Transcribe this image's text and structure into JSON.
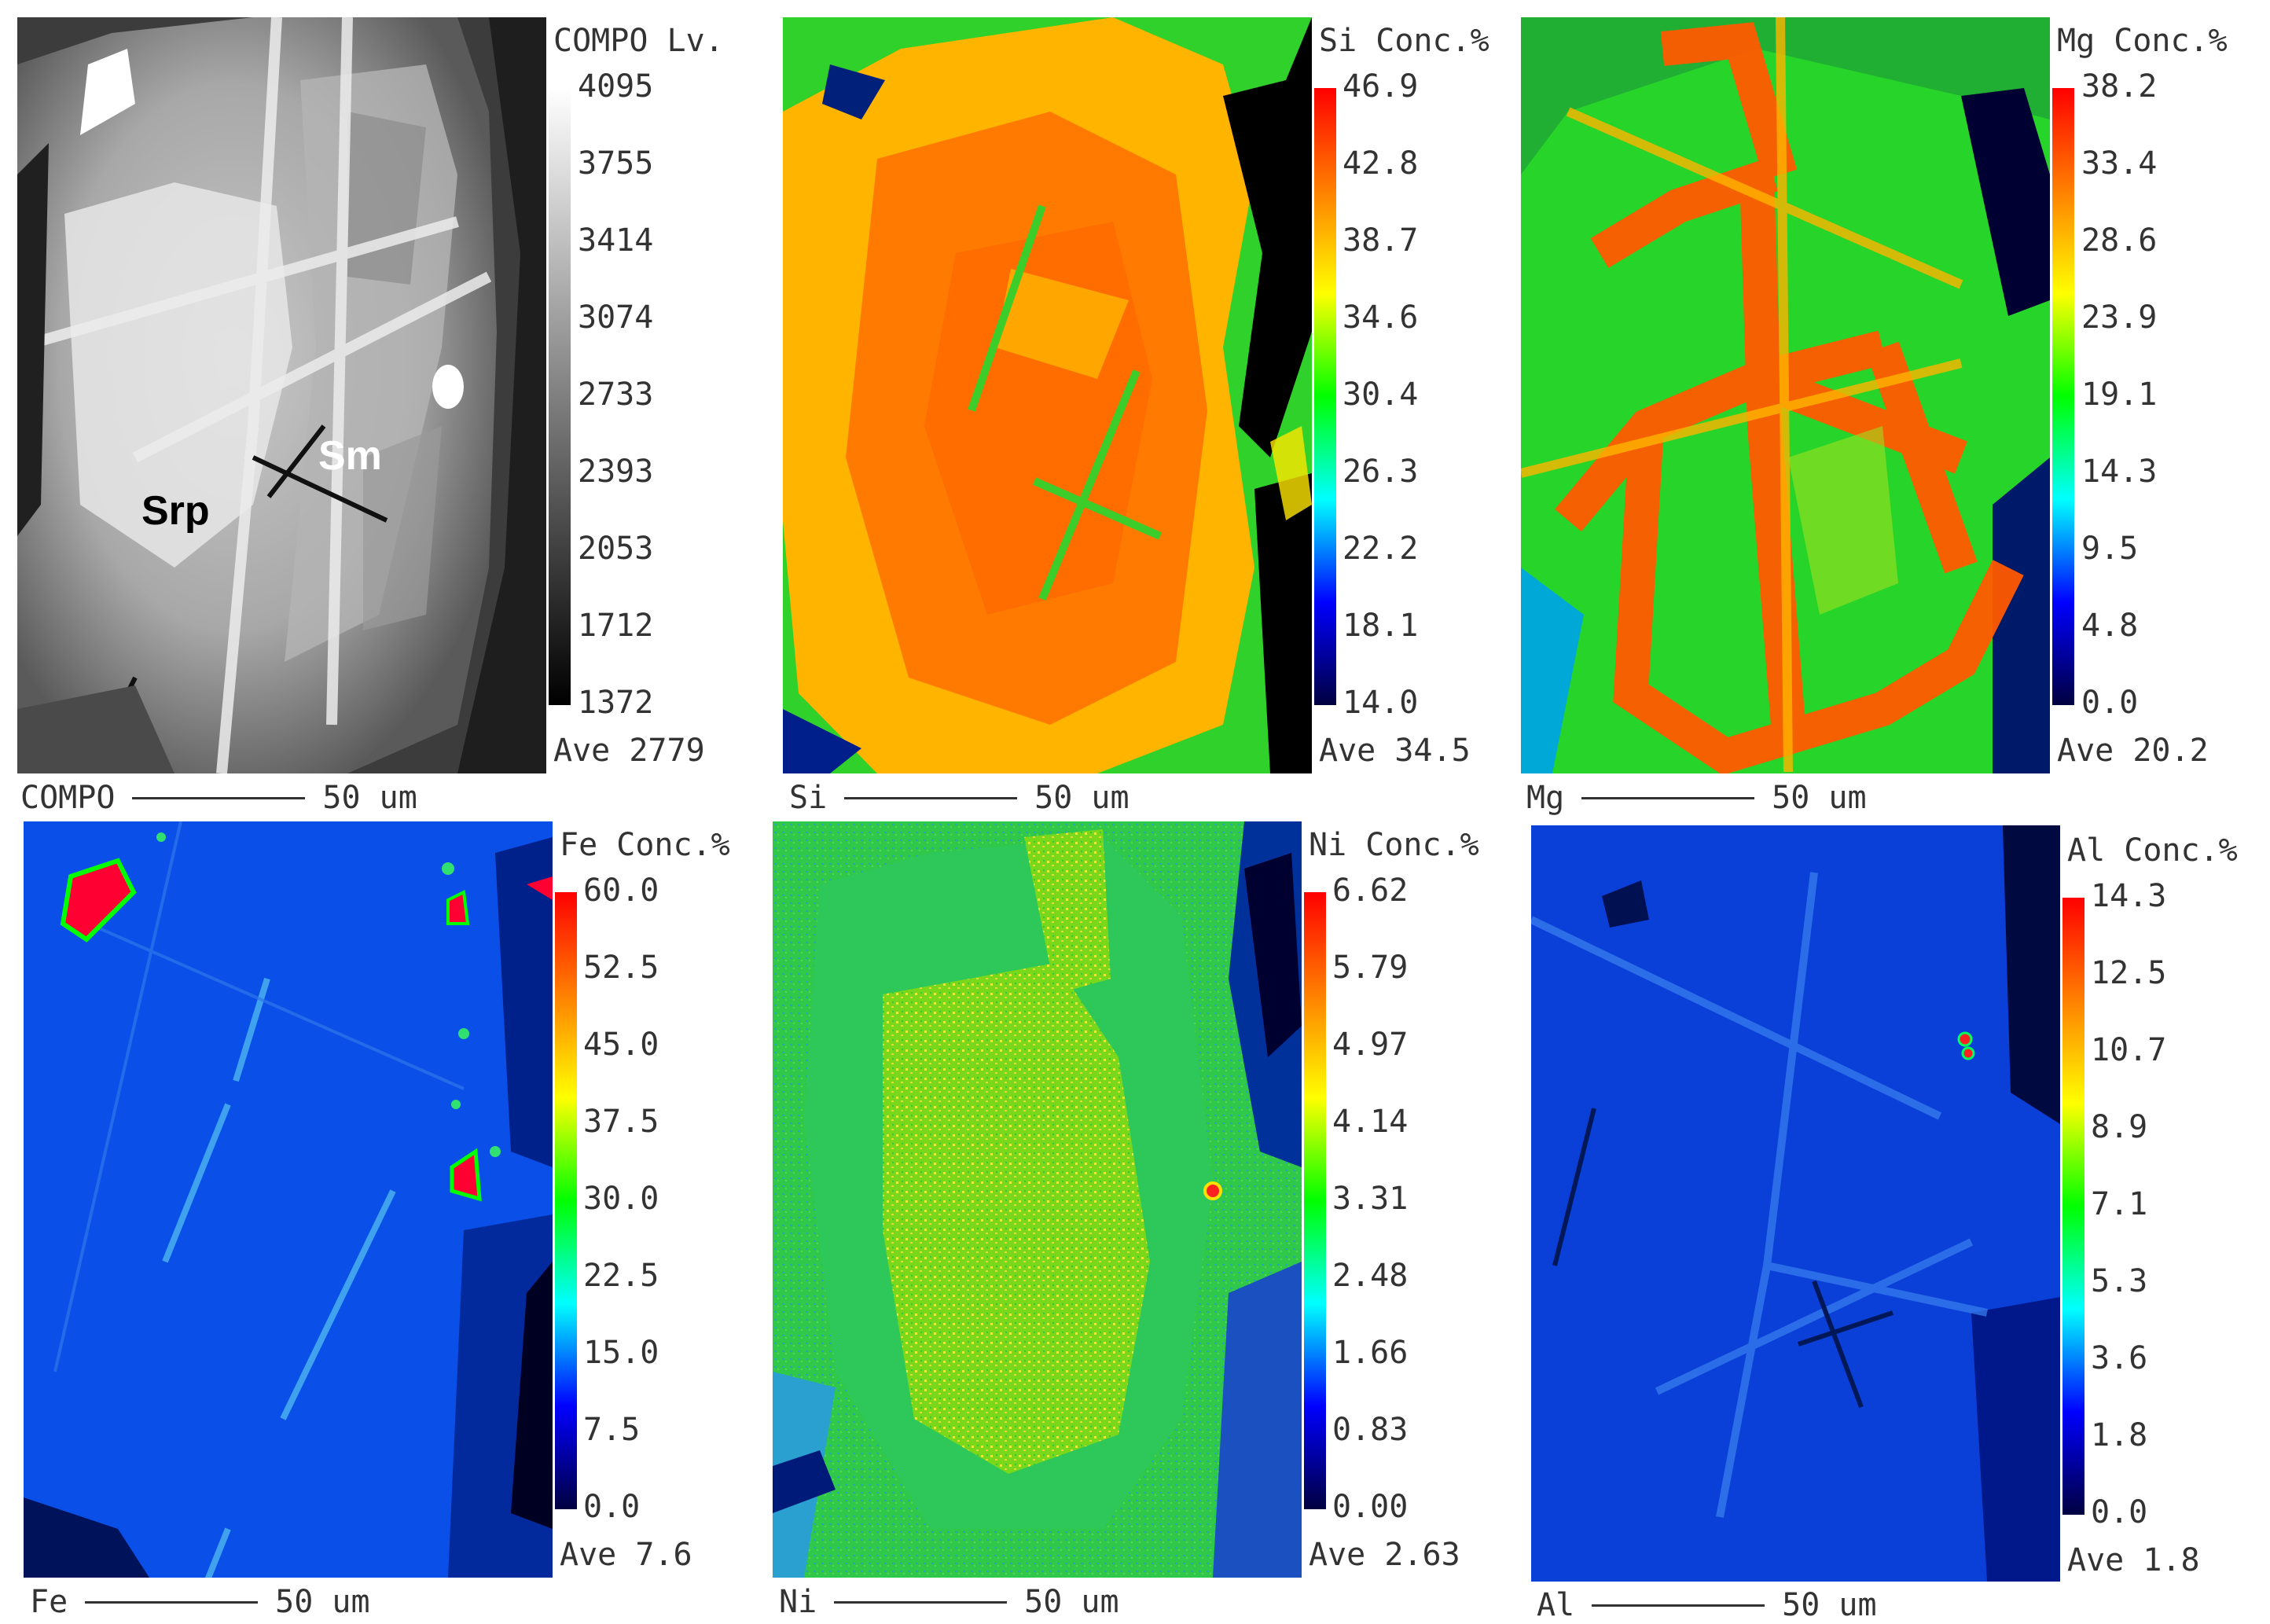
{
  "panels": [
    {
      "id": "compo",
      "title": "COMPO Lv.",
      "ticks": [
        "4095",
        "3755",
        "3414",
        "3074",
        "2733",
        "2393",
        "2053",
        "1712",
        "1372"
      ],
      "ave": "Ave 2779",
      "scale_name": "COMPO",
      "scale_value": "50 um",
      "colormap": "gray"
    },
    {
      "id": "si",
      "title": "Si Conc.%",
      "ticks": [
        "46.9",
        "42.8",
        "38.7",
        "34.6",
        "30.4",
        "26.3",
        "22.2",
        "18.1",
        "14.0"
      ],
      "ave": "Ave 34.5",
      "scale_name": "Si",
      "scale_value": "50 um",
      "colormap": "jet"
    },
    {
      "id": "mg",
      "title": "Mg Conc.%",
      "ticks": [
        "38.2",
        "33.4",
        "28.6",
        "23.9",
        "19.1",
        "14.3",
        "9.5",
        "4.8",
        "0.0"
      ],
      "ave": "Ave 20.2",
      "scale_name": "Mg",
      "scale_value": "50 um",
      "colormap": "jet"
    },
    {
      "id": "fe",
      "title": "Fe Conc.%",
      "ticks": [
        "60.0",
        "52.5",
        "45.0",
        "37.5",
        "30.0",
        "22.5",
        "15.0",
        "7.5",
        "0.0"
      ],
      "ave": "Ave 7.6",
      "scale_name": "Fe",
      "scale_value": "50 um",
      "colormap": "jet"
    },
    {
      "id": "ni",
      "title": "Ni Conc.%",
      "ticks": [
        "6.62",
        "5.79",
        "4.97",
        "4.14",
        "3.31",
        "2.48",
        "1.66",
        "0.83",
        "0.00"
      ],
      "ave": "Ave 2.63",
      "scale_name": "Ni",
      "scale_value": "50 um",
      "colormap": "jet"
    },
    {
      "id": "al",
      "title": "Al Conc.%",
      "ticks": [
        "14.3",
        "12.5",
        "10.7",
        "8.9",
        "7.1",
        "5.3",
        "3.6",
        "1.8",
        "0.0"
      ],
      "ave": "Ave 1.8",
      "scale_name": "Al",
      "scale_value": "50 um",
      "colormap": "jet"
    }
  ],
  "mineral_labels": {
    "srp": "Srp",
    "sm": "Sm"
  },
  "colors": {
    "srp_label": "#000000",
    "sm_label": "#ffffff"
  }
}
